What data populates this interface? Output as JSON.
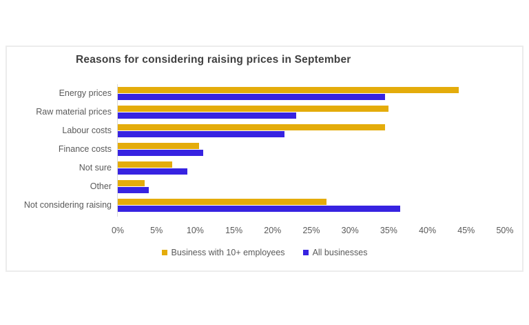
{
  "chart_data": {
    "type": "bar",
    "orientation": "horizontal",
    "title": "Reasons for considering raising prices in September",
    "categories": [
      "Energy prices",
      "Raw material prices",
      "Labour costs",
      "Finance costs",
      "Not sure",
      "Other",
      "Not considering raising"
    ],
    "series": [
      {
        "name": "Business with 10+ employees",
        "color": "#E4AC0B",
        "values": [
          44,
          35,
          34.5,
          10.5,
          7,
          3.5,
          27
        ]
      },
      {
        "name": "All businesses",
        "color": "#3723E1",
        "values": [
          34.5,
          23,
          21.5,
          11,
          9,
          4,
          36.5
        ]
      }
    ],
    "xlabel": "",
    "ylabel": "",
    "xlim": [
      0,
      50
    ],
    "x_ticks": [
      "0%",
      "5%",
      "10%",
      "15%",
      "20%",
      "25%",
      "30%",
      "35%",
      "40%",
      "45%",
      "50%"
    ],
    "grid": false,
    "legend_position": "bottom",
    "colors": {
      "title_text": "#404040",
      "axis_text": "#595959",
      "axis_line": "#D9D9D9",
      "chart_border": "#ECECEC"
    }
  }
}
